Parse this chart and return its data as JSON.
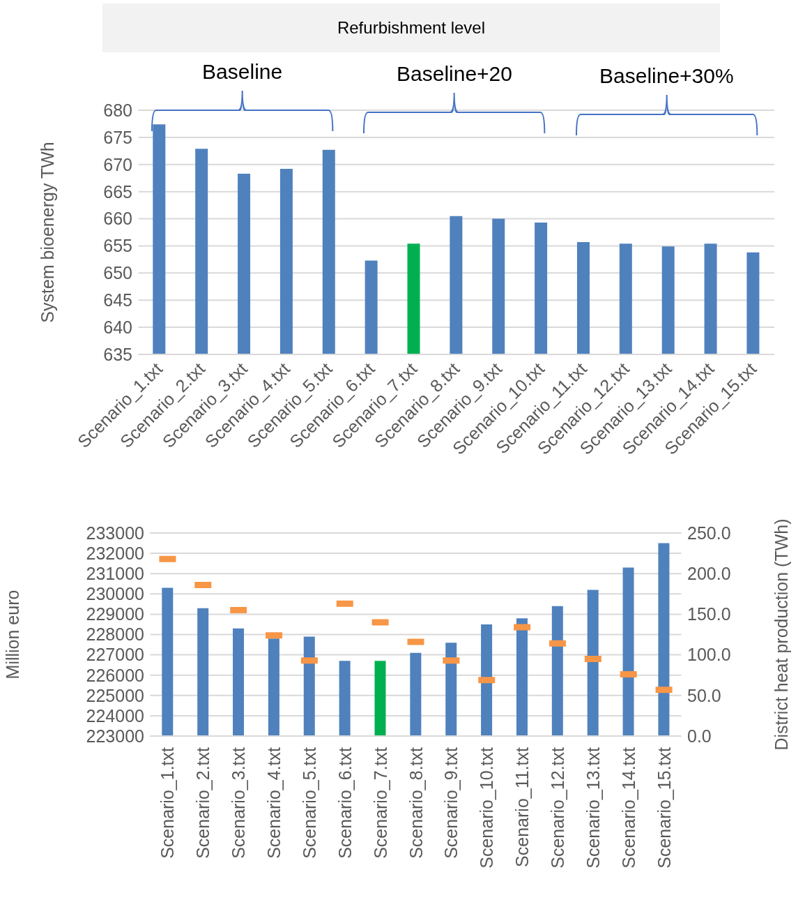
{
  "chart_data": [
    {
      "type": "bar",
      "title": "Refurbishment level",
      "annotations": [
        "Baseline",
        "Baseline+20",
        "Baseline+30%"
      ],
      "ylabel": "System bioenergy TWh",
      "categories": [
        "Scenario_1.txt",
        "Scenario_2.txt",
        "Scenario_3.txt",
        "Scenario_4.txt",
        "Scenario_5.txt",
        "Scenario_6.txt",
        "Scenario_7.txt",
        "Scenario_8.txt",
        "Scenario_9.txt",
        "Scenario_10.txt",
        "Scenario_11.txt",
        "Scenario_12.txt",
        "Scenario_13.txt",
        "Scenario_14.txt",
        "Scenario_15.txt"
      ],
      "values": [
        677.4,
        672.9,
        668.3,
        669.2,
        672.7,
        652.3,
        655.4,
        660.5,
        660.0,
        659.3,
        655.7,
        655.4,
        654.9,
        655.4,
        653.8
      ],
      "colors": [
        "#4f81bd",
        "#4f81bd",
        "#4f81bd",
        "#4f81bd",
        "#4f81bd",
        "#4f81bd",
        "#00b050",
        "#4f81bd",
        "#4f81bd",
        "#4f81bd",
        "#4f81bd",
        "#4f81bd",
        "#4f81bd",
        "#4f81bd",
        "#4f81bd"
      ],
      "ylim": [
        635,
        680
      ],
      "yticks": [
        635,
        640,
        645,
        650,
        655,
        660,
        665,
        670,
        675,
        680
      ],
      "grid": "y"
    },
    {
      "type": "bar",
      "ylabel": "Million euro",
      "y2label": "District heat production (TWh)",
      "categories": [
        "Scenario_1.txt",
        "Scenario_2.txt",
        "Scenario_3.txt",
        "Scenario_4.txt",
        "Scenario_5.txt",
        "Scenario_6.txt",
        "Scenario_7.txt",
        "Scenario_8.txt",
        "Scenario_9.txt",
        "Scenario_10.txt",
        "Scenario_11.txt",
        "Scenario_12.txt",
        "Scenario_13.txt",
        "Scenario_14.txt",
        "Scenario_15.txt"
      ],
      "series": [
        {
          "colors": [
            "#4f81bd",
            "#4f81bd",
            "#4f81bd",
            "#4f81bd",
            "#4f81bd",
            "#4f81bd",
            "#00b050",
            "#4f81bd",
            "#4f81bd",
            "#4f81bd",
            "#4f81bd",
            "#4f81bd",
            "#4f81bd",
            "#4f81bd",
            "#4f81bd"
          ],
          "values": [
            230300,
            229300,
            228300,
            227800,
            227900,
            226700,
            226700,
            227100,
            227600,
            228500,
            228800,
            229400,
            230200,
            231300,
            232500
          ]
        },
        {
          "type": "scatter",
          "axis": "y2",
          "color": "#f79646",
          "values": [
            218,
            186,
            155,
            124,
            93,
            163,
            140,
            116,
            93,
            69,
            134,
            114,
            95,
            76,
            57
          ]
        }
      ],
      "ylim": [
        223000,
        233000
      ],
      "yticks": [
        223000,
        224000,
        225000,
        226000,
        227000,
        228000,
        229000,
        230000,
        231000,
        232000,
        233000
      ],
      "y2lim": [
        0,
        250
      ],
      "y2ticks": [
        {
          "value": 0,
          "label": "0.0"
        },
        {
          "value": 50,
          "label": "50.0"
        },
        {
          "value": 100,
          "label": "100.0"
        },
        {
          "value": 150,
          "label": "150.0"
        },
        {
          "value": 200,
          "label": "200.0"
        },
        {
          "value": 250,
          "label": "250.0"
        }
      ],
      "grid": "y"
    }
  ]
}
